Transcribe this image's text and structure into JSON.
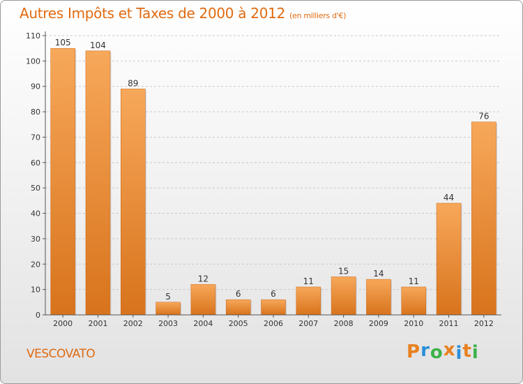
{
  "chart_data": {
    "type": "bar",
    "title": "Autres Impôts et Taxes de 2000 à 2012",
    "subtitle": "(en milliers d'€)",
    "categories": [
      "2000",
      "2001",
      "2002",
      "2003",
      "2004",
      "2005",
      "2006",
      "2007",
      "2008",
      "2009",
      "2010",
      "2011",
      "2012"
    ],
    "values": [
      105,
      104,
      89,
      5,
      12,
      6,
      6,
      11,
      15,
      14,
      11,
      44,
      76
    ],
    "ylim": [
      0,
      110
    ],
    "yticks": [
      0,
      10,
      20,
      30,
      40,
      50,
      60,
      70,
      80,
      90,
      100,
      110
    ],
    "grid": true,
    "bar_color_top": "#f7a85a",
    "bar_color_bottom": "#d8731c"
  },
  "commune": "VESCOVATO",
  "logo": {
    "text": "Proxiti",
    "letters": [
      "P",
      "r",
      "o",
      "x",
      "i",
      "t",
      "i"
    ],
    "colors": [
      "#e8811f",
      "#2a8fd8",
      "#3bb34a",
      "#e8811f",
      "#2a8fd8",
      "#e8811f",
      "#3bb34a"
    ]
  }
}
